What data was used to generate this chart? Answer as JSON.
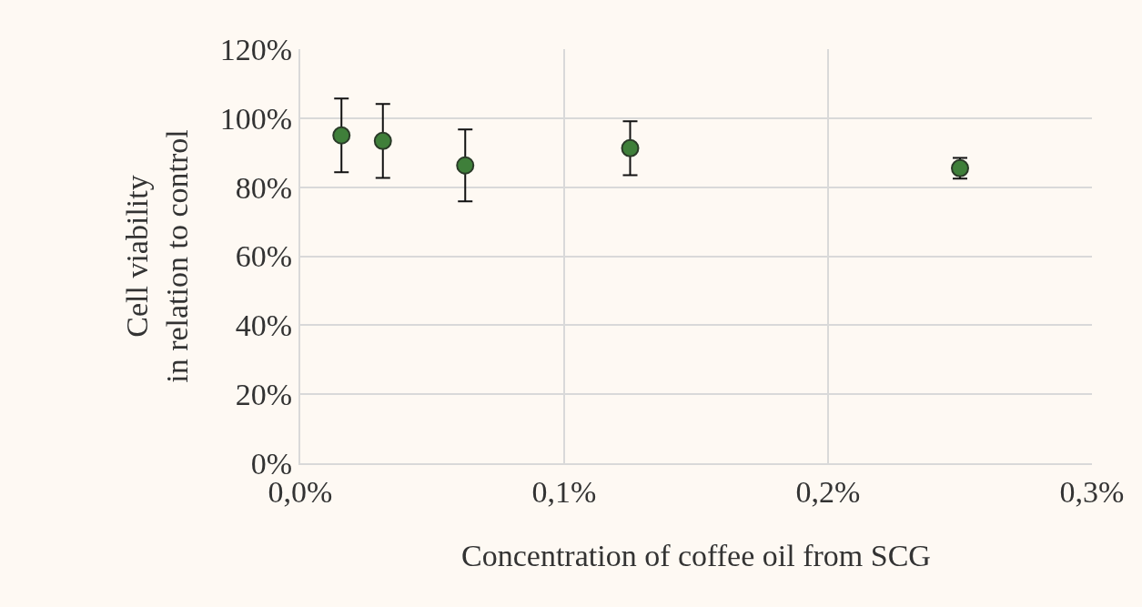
{
  "chart_data": {
    "type": "scatter",
    "xlabel": "Concentration of coffee oil from SCG",
    "ylabel": "Cell viability\nin relation to control",
    "x": [
      0.0156,
      0.0313,
      0.0625,
      0.125,
      0.25
    ],
    "series": [
      {
        "color": "#3f7f3a",
        "values": [
          95,
          93.4,
          86.3,
          91.3,
          85.5
        ],
        "errors": [
          10.7,
          10.7,
          10.4,
          7.8,
          3
        ]
      }
    ],
    "xlim": [
      0,
      0.3
    ],
    "xticks": [
      {
        "value": 0,
        "label": "0,0%"
      },
      {
        "value": 0.1,
        "label": "0,1%"
      },
      {
        "value": 0.2,
        "label": "0,2%"
      },
      {
        "value": 0.3,
        "label": "0,3%"
      }
    ],
    "ylim": [
      0,
      120
    ],
    "yticks": [
      {
        "value": 0,
        "label": "0%"
      },
      {
        "value": 20,
        "label": "20%"
      },
      {
        "value": 40,
        "label": "40%"
      },
      {
        "value": 60,
        "label": "60%"
      },
      {
        "value": 80,
        "label": "80%"
      },
      {
        "value": 100,
        "label": "100%"
      },
      {
        "value": 120,
        "label": "120%"
      }
    ],
    "grid": true,
    "marker": "circle"
  }
}
